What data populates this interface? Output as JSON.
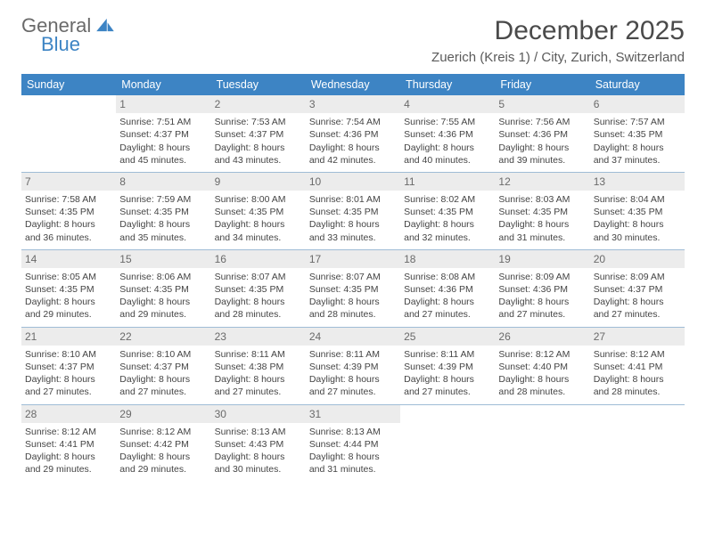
{
  "brand": {
    "word1": "General",
    "word2": "Blue",
    "color_gray": "#6a6a6a",
    "color_blue": "#3d84c4"
  },
  "title": "December 2025",
  "subtitle": "Zuerich (Kreis 1) / City, Zurich, Switzerland",
  "header_bg": "#3d84c4",
  "header_fg": "#ffffff",
  "daynum_bg": "#ececec",
  "row_border": "#9fbcd6",
  "days": [
    "Sunday",
    "Monday",
    "Tuesday",
    "Wednesday",
    "Thursday",
    "Friday",
    "Saturday"
  ],
  "weeks": [
    [
      {
        "n": "",
        "sr": "",
        "ss": "",
        "dl1": "",
        "dl2": ""
      },
      {
        "n": "1",
        "sr": "Sunrise: 7:51 AM",
        "ss": "Sunset: 4:37 PM",
        "dl1": "Daylight: 8 hours",
        "dl2": "and 45 minutes."
      },
      {
        "n": "2",
        "sr": "Sunrise: 7:53 AM",
        "ss": "Sunset: 4:37 PM",
        "dl1": "Daylight: 8 hours",
        "dl2": "and 43 minutes."
      },
      {
        "n": "3",
        "sr": "Sunrise: 7:54 AM",
        "ss": "Sunset: 4:36 PM",
        "dl1": "Daylight: 8 hours",
        "dl2": "and 42 minutes."
      },
      {
        "n": "4",
        "sr": "Sunrise: 7:55 AM",
        "ss": "Sunset: 4:36 PM",
        "dl1": "Daylight: 8 hours",
        "dl2": "and 40 minutes."
      },
      {
        "n": "5",
        "sr": "Sunrise: 7:56 AM",
        "ss": "Sunset: 4:36 PM",
        "dl1": "Daylight: 8 hours",
        "dl2": "and 39 minutes."
      },
      {
        "n": "6",
        "sr": "Sunrise: 7:57 AM",
        "ss": "Sunset: 4:35 PM",
        "dl1": "Daylight: 8 hours",
        "dl2": "and 37 minutes."
      }
    ],
    [
      {
        "n": "7",
        "sr": "Sunrise: 7:58 AM",
        "ss": "Sunset: 4:35 PM",
        "dl1": "Daylight: 8 hours",
        "dl2": "and 36 minutes."
      },
      {
        "n": "8",
        "sr": "Sunrise: 7:59 AM",
        "ss": "Sunset: 4:35 PM",
        "dl1": "Daylight: 8 hours",
        "dl2": "and 35 minutes."
      },
      {
        "n": "9",
        "sr": "Sunrise: 8:00 AM",
        "ss": "Sunset: 4:35 PM",
        "dl1": "Daylight: 8 hours",
        "dl2": "and 34 minutes."
      },
      {
        "n": "10",
        "sr": "Sunrise: 8:01 AM",
        "ss": "Sunset: 4:35 PM",
        "dl1": "Daylight: 8 hours",
        "dl2": "and 33 minutes."
      },
      {
        "n": "11",
        "sr": "Sunrise: 8:02 AM",
        "ss": "Sunset: 4:35 PM",
        "dl1": "Daylight: 8 hours",
        "dl2": "and 32 minutes."
      },
      {
        "n": "12",
        "sr": "Sunrise: 8:03 AM",
        "ss": "Sunset: 4:35 PM",
        "dl1": "Daylight: 8 hours",
        "dl2": "and 31 minutes."
      },
      {
        "n": "13",
        "sr": "Sunrise: 8:04 AM",
        "ss": "Sunset: 4:35 PM",
        "dl1": "Daylight: 8 hours",
        "dl2": "and 30 minutes."
      }
    ],
    [
      {
        "n": "14",
        "sr": "Sunrise: 8:05 AM",
        "ss": "Sunset: 4:35 PM",
        "dl1": "Daylight: 8 hours",
        "dl2": "and 29 minutes."
      },
      {
        "n": "15",
        "sr": "Sunrise: 8:06 AM",
        "ss": "Sunset: 4:35 PM",
        "dl1": "Daylight: 8 hours",
        "dl2": "and 29 minutes."
      },
      {
        "n": "16",
        "sr": "Sunrise: 8:07 AM",
        "ss": "Sunset: 4:35 PM",
        "dl1": "Daylight: 8 hours",
        "dl2": "and 28 minutes."
      },
      {
        "n": "17",
        "sr": "Sunrise: 8:07 AM",
        "ss": "Sunset: 4:35 PM",
        "dl1": "Daylight: 8 hours",
        "dl2": "and 28 minutes."
      },
      {
        "n": "18",
        "sr": "Sunrise: 8:08 AM",
        "ss": "Sunset: 4:36 PM",
        "dl1": "Daylight: 8 hours",
        "dl2": "and 27 minutes."
      },
      {
        "n": "19",
        "sr": "Sunrise: 8:09 AM",
        "ss": "Sunset: 4:36 PM",
        "dl1": "Daylight: 8 hours",
        "dl2": "and 27 minutes."
      },
      {
        "n": "20",
        "sr": "Sunrise: 8:09 AM",
        "ss": "Sunset: 4:37 PM",
        "dl1": "Daylight: 8 hours",
        "dl2": "and 27 minutes."
      }
    ],
    [
      {
        "n": "21",
        "sr": "Sunrise: 8:10 AM",
        "ss": "Sunset: 4:37 PM",
        "dl1": "Daylight: 8 hours",
        "dl2": "and 27 minutes."
      },
      {
        "n": "22",
        "sr": "Sunrise: 8:10 AM",
        "ss": "Sunset: 4:37 PM",
        "dl1": "Daylight: 8 hours",
        "dl2": "and 27 minutes."
      },
      {
        "n": "23",
        "sr": "Sunrise: 8:11 AM",
        "ss": "Sunset: 4:38 PM",
        "dl1": "Daylight: 8 hours",
        "dl2": "and 27 minutes."
      },
      {
        "n": "24",
        "sr": "Sunrise: 8:11 AM",
        "ss": "Sunset: 4:39 PM",
        "dl1": "Daylight: 8 hours",
        "dl2": "and 27 minutes."
      },
      {
        "n": "25",
        "sr": "Sunrise: 8:11 AM",
        "ss": "Sunset: 4:39 PM",
        "dl1": "Daylight: 8 hours",
        "dl2": "and 27 minutes."
      },
      {
        "n": "26",
        "sr": "Sunrise: 8:12 AM",
        "ss": "Sunset: 4:40 PM",
        "dl1": "Daylight: 8 hours",
        "dl2": "and 28 minutes."
      },
      {
        "n": "27",
        "sr": "Sunrise: 8:12 AM",
        "ss": "Sunset: 4:41 PM",
        "dl1": "Daylight: 8 hours",
        "dl2": "and 28 minutes."
      }
    ],
    [
      {
        "n": "28",
        "sr": "Sunrise: 8:12 AM",
        "ss": "Sunset: 4:41 PM",
        "dl1": "Daylight: 8 hours",
        "dl2": "and 29 minutes."
      },
      {
        "n": "29",
        "sr": "Sunrise: 8:12 AM",
        "ss": "Sunset: 4:42 PM",
        "dl1": "Daylight: 8 hours",
        "dl2": "and 29 minutes."
      },
      {
        "n": "30",
        "sr": "Sunrise: 8:13 AM",
        "ss": "Sunset: 4:43 PM",
        "dl1": "Daylight: 8 hours",
        "dl2": "and 30 minutes."
      },
      {
        "n": "31",
        "sr": "Sunrise: 8:13 AM",
        "ss": "Sunset: 4:44 PM",
        "dl1": "Daylight: 8 hours",
        "dl2": "and 31 minutes."
      },
      {
        "n": "",
        "sr": "",
        "ss": "",
        "dl1": "",
        "dl2": ""
      },
      {
        "n": "",
        "sr": "",
        "ss": "",
        "dl1": "",
        "dl2": ""
      },
      {
        "n": "",
        "sr": "",
        "ss": "",
        "dl1": "",
        "dl2": ""
      }
    ]
  ]
}
